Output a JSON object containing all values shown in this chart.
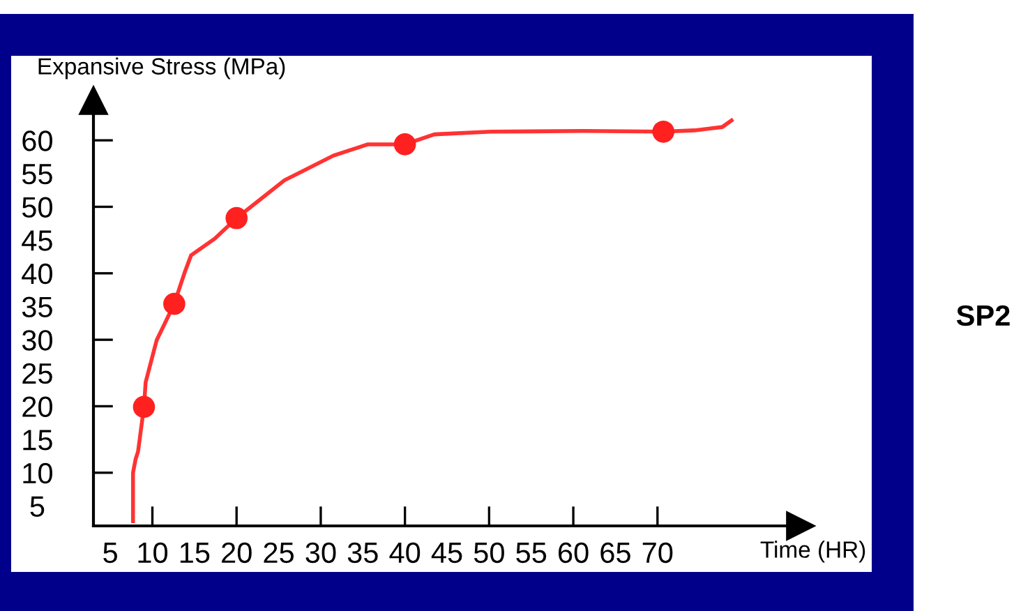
{
  "chart_data": {
    "type": "line",
    "xlabel": "Time (HR)",
    "ylabel": "Expansive Stress (MPa)",
    "annotations": [
      "SP2"
    ],
    "series": [
      {
        "color": "#ff3333",
        "x": [
          7.7,
          7.7,
          8.0,
          8.3,
          9.0,
          9.2,
          10.5,
          12.6,
          13.8,
          14.6,
          17.4,
          20.0,
          25.7,
          31.5,
          35.6,
          40.0,
          43.5,
          50.2,
          61.2,
          70.7,
          74.4,
          77.7,
          78.8
        ],
        "values": [
          2.7,
          10,
          12,
          13.2,
          19.9,
          23.6,
          29.9,
          35.4,
          40,
          42.7,
          45.2,
          48.3,
          54,
          57.7,
          59.4,
          59.4,
          60.9,
          61.3,
          61.4,
          61.3,
          61.5,
          62,
          63
        ]
      },
      {
        "type": "scatter",
        "color": "#ff2020",
        "marker": "circle",
        "x": [
          9.0,
          12.6,
          20.0,
          40.0,
          70.7
        ],
        "values": [
          19.9,
          35.4,
          48.3,
          59.4,
          61.3
        ]
      }
    ],
    "xlim": [
      3,
      87
    ],
    "ylim": [
      2,
      66
    ],
    "xticks": [
      5,
      10,
      15,
      20,
      25,
      30,
      35,
      40,
      45,
      50,
      55,
      60,
      65,
      70
    ],
    "yticks": [
      5,
      10,
      15,
      20,
      25,
      30,
      35,
      40,
      45,
      50,
      55,
      60
    ],
    "grid": false,
    "legend": false
  }
}
